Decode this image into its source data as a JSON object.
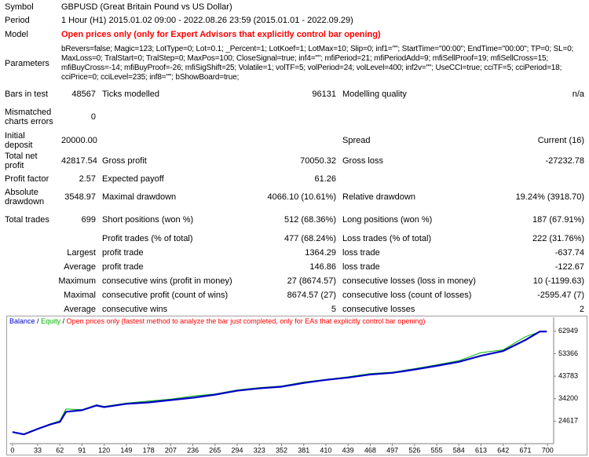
{
  "report": {
    "rows": [
      [
        "Symbol",
        "GBPUSD (Great Britain Pound vs US Dollar)"
      ],
      [
        "Period",
        "1 Hour (H1) 2015.01.02 09:00 - 2022.08.26 23:59 (2015.01.01 - 2022.09.29)"
      ],
      [
        "Model",
        "Open prices only (only for Expert Advisors that explicitly control bar opening)"
      ],
      [
        "Parameters",
        "bRevers=false; Magic=123; LotType=0; Lot=0.1; _Percent=1; LotKoef=1; LotMax=10; Slip=0; inf1=\"\"; StartTime=\"00:00\"; EndTime=\"00:00\"; TP=0; SL=0; MaxLoss=0; TralStart=0; TralStep=0; MaxPos=100; CloseSignal=true; inf4=\"\"; mfiPeriod=21; mfiPeriodAdd=9; mfiSellProof=19; mfiSellCross=15; mfiBuyCross=-14; mfiBuyProof=-26; mfiSigShift=25; Volatile=1; volTF=5; volPeriod=24; volLevel=400; inf2v=\"\"; UseCCI=true; cciTF=5; cciPeriod=18; cciPrice=0; cciLevel=235; inf8=\"\"; bShowBoard=true;"
      ],
      [
        "Bars in test",
        "48567",
        "Ticks modelled",
        "96131",
        "Modelling quality",
        "n/a"
      ],
      [
        "Mismatched charts errors",
        "0"
      ],
      [
        "Initial deposit",
        "20000.00",
        "Spread",
        "Current (16)"
      ],
      [
        "Total net profit",
        "42817.54",
        "Gross profit",
        "70050.32",
        "Gross loss",
        "-27232.78"
      ],
      [
        "Profit factor",
        "2.57",
        "Expected payoff",
        "61.26"
      ],
      [
        "Absolute drawdown",
        "3548.97",
        "Maximal drawdown",
        "4066.10 (10.61%)",
        "Relative drawdown",
        "19.24% (3918.70)"
      ],
      [
        "Total trades",
        "699",
        "Short positions (won %)",
        "512 (68.36%)",
        "Long positions (won %)",
        "187 (67.91%)"
      ],
      [
        "Profit trades (% of total)",
        "477 (68.24%)",
        "Loss trades (% of total)",
        "222 (31.76%)"
      ],
      [
        "Largest",
        "profit trade",
        "1364.29",
        "loss trade",
        "-637.74"
      ],
      [
        "Average",
        "profit trade",
        "146.86",
        "loss trade",
        "-122.67"
      ],
      [
        "Maximum",
        "consecutive wins (profit in money)",
        "27 (8674.57)",
        "consecutive losses (loss in money)",
        "10 (-1199.63)"
      ],
      [
        "Maximal",
        "consecutive profit (count of wins)",
        "8674.57 (27)",
        "consecutive loss (count of losses)",
        "-2595.47 (7)"
      ],
      [
        "Average",
        "consecutive wins",
        "5",
        "consecutive losses",
        "2"
      ]
    ]
  },
  "chart_data": {
    "type": "line",
    "note": "Open prices only (fastest method to analyze the bar just completed, only for EAs that explicitly control bar opening)",
    "separator": "/",
    "x": [
      0,
      15,
      33,
      50,
      62,
      70,
      91,
      110,
      120,
      149,
      178,
      207,
      236,
      265,
      294,
      323,
      352,
      381,
      410,
      439,
      468,
      497,
      526,
      555,
      584,
      613,
      642,
      671,
      690,
      699
    ],
    "series": [
      {
        "name": "Balance",
        "color": "#0000c8",
        "values": [
          20000,
          19000,
          21300,
          23300,
          24300,
          28600,
          29300,
          31300,
          30600,
          32000,
          32600,
          33600,
          34600,
          35900,
          37600,
          38600,
          39300,
          40900,
          42200,
          43200,
          44500,
          45200,
          46600,
          48200,
          49900,
          52500,
          54500,
          59200,
          62800,
          62818
        ]
      },
      {
        "name": "Equity",
        "color": "#00b400",
        "values": [
          20000,
          19200,
          21500,
          23500,
          24800,
          29800,
          29500,
          31600,
          30900,
          32300,
          33200,
          34000,
          35300,
          36200,
          37900,
          38900,
          39600,
          41300,
          42400,
          43500,
          44900,
          45500,
          47000,
          48600,
          50400,
          53800,
          55000,
          60600,
          62700,
          62818
        ]
      }
    ],
    "xlim": [
      -4,
      708
    ],
    "ylim": [
      15034,
      68900
    ],
    "xticks": [
      0,
      33,
      62,
      91,
      120,
      149,
      178,
      207,
      236,
      265,
      294,
      323,
      352,
      381,
      410,
      439,
      468,
      497,
      526,
      555,
      584,
      613,
      642,
      671,
      700
    ],
    "yticks": [
      24617,
      34200,
      43783,
      53366,
      62949
    ],
    "note_color": "#ff0000"
  }
}
